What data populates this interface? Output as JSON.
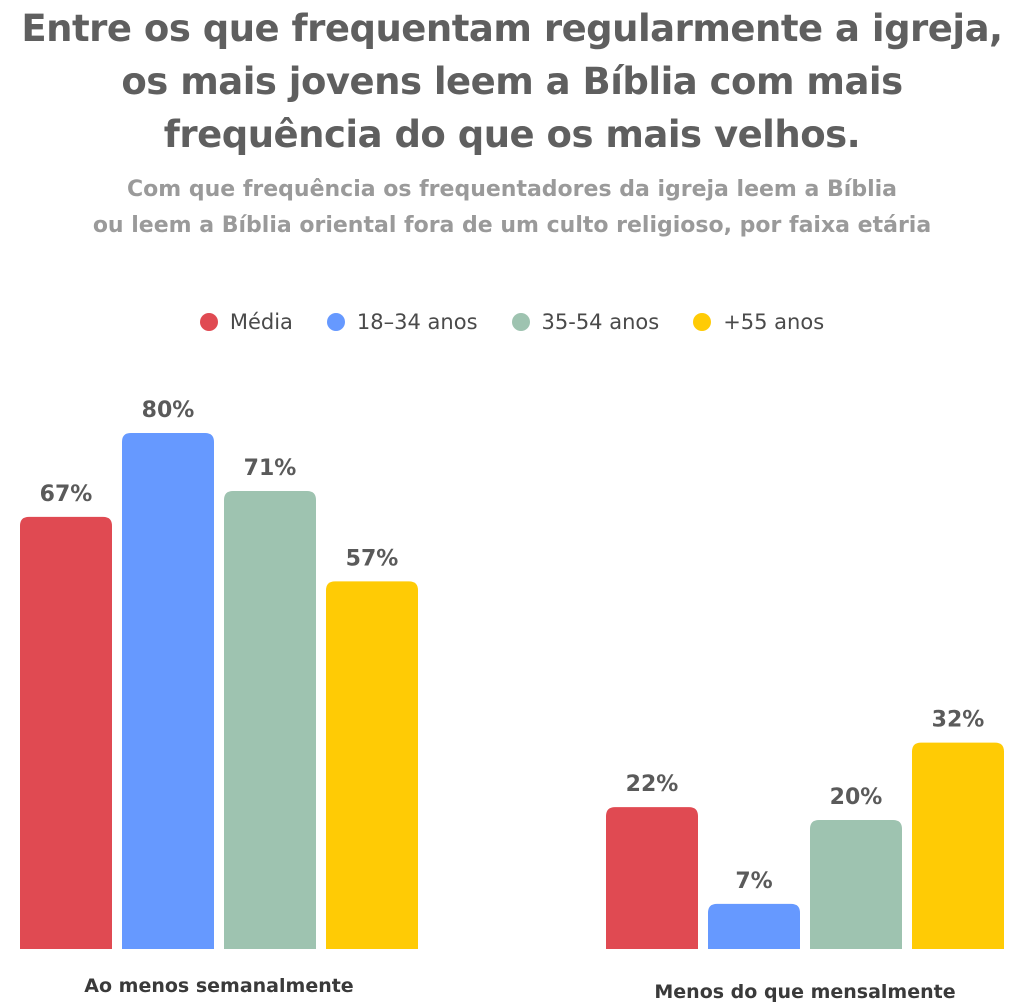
{
  "title_lines": [
    "Entre os que frequentam regularmente a igreja,",
    "os mais jovens  leem a Bíblia com mais",
    "frequência do que os mais velhos."
  ],
  "subtitle_lines": [
    "Com que frequência os frequentadores da igreja leem a Bíblia",
    "ou leem a Bíblia oriental fora de um culto religioso, por faixa etária"
  ],
  "legend": [
    {
      "label": "Média",
      "color": "#e04a52"
    },
    {
      "label": "18–34 anos",
      "color": "#6699ff"
    },
    {
      "label": "35-54 anos",
      "color": "#9ec3b0"
    },
    {
      "label": "+55 anos",
      "color": "#ffcb05"
    }
  ],
  "chart_data": {
    "type": "bar",
    "categories": [
      "Ao menos semanalmente",
      "Menos do que mensalmente"
    ],
    "series": [
      {
        "name": "Média",
        "values": [
          67,
          22
        ],
        "labels": [
          "67%",
          "22%"
        ],
        "color": "#e04a52"
      },
      {
        "name": "18–34 anos",
        "values": [
          80,
          7
        ],
        "labels": [
          "80%",
          "7%"
        ],
        "color": "#6699ff"
      },
      {
        "name": "35-54 anos",
        "values": [
          71,
          20
        ],
        "labels": [
          "71%",
          "20%"
        ],
        "color": "#9ec3b0"
      },
      {
        "name": "+55 anos",
        "values": [
          57,
          32
        ],
        "labels": [
          "57%",
          "32%"
        ],
        "color": "#ffcb05"
      }
    ],
    "ylim": [
      0,
      100
    ],
    "legend_position": "top-center",
    "grid": false
  }
}
